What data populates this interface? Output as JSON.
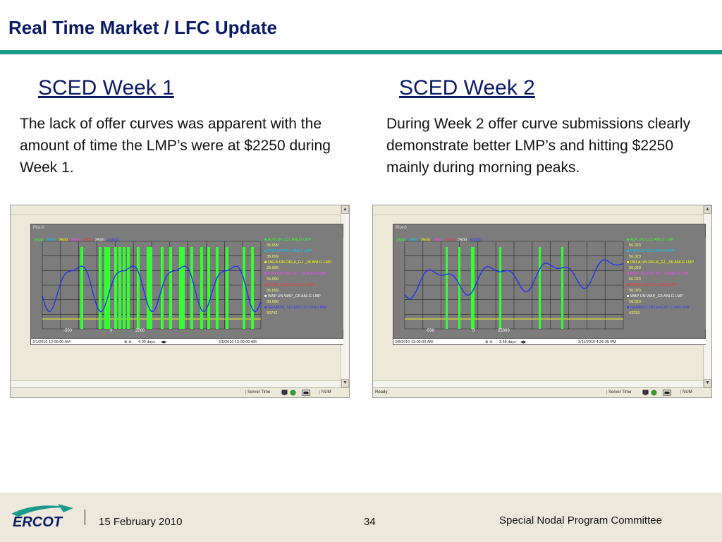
{
  "slide": {
    "title": "Real Time Market / LFC Update",
    "colors": {
      "title": "#0a1a66",
      "rule": "#1a9a8a",
      "footer_bg": "#ece9dc"
    }
  },
  "week1": {
    "heading": "SCED Week 1",
    "text": "The lack of offer curves was apparent with the amount of time the LMP’s were at $2250 during Week 1.",
    "window": {
      "plot_label": "Plot-0",
      "header_values": [
        "2500",
        "2500",
        "2500",
        "2500",
        "2500",
        "2500",
        "43000"
      ],
      "legend": [
        {
          "label": "ALR UN CC1 ANLG LMP",
          "value": "35.099",
          "color": "#33ff33"
        },
        {
          "label": "PSO UN CC1 ANLG LMP",
          "value": "35.099",
          "color": "#00ccff"
        },
        {
          "label": "OKLA UN OKLA_G1 _05 ANLG LMP",
          "value": "35.099",
          "color": "#ffff00"
        },
        {
          "label": "ERF UN STP_G1 _06 ANLG LMP",
          "value": "35.099",
          "color": "#ff44ff"
        },
        {
          "label": "DUKE UN CC1 ANLG LMP",
          "value": "35.099",
          "color": "#ff3333"
        },
        {
          "label": "WAP UN WAP_G5 ANLG LMP",
          "value": "35.099",
          "color": "#ffffff"
        },
        {
          "label": "GENMISC ND ERCOT LOAD MW",
          "value": "30742",
          "color": "#3333ff"
        }
      ],
      "axis_start": "2/1/2010 12:00:00 AM",
      "axis_span": "4.00 days",
      "axis_end": "2/5/2010 12:00:00 AM",
      "bottom_values": [
        "-500",
        "0",
        "2000"
      ],
      "status_server": "Server Time",
      "status_num": "NUM"
    }
  },
  "week2": {
    "heading": "SCED Week 2",
    "text": "During Week 2 offer curve submissions clearly demonstrate better LMP’s and hitting $2250 mainly during morning peaks.",
    "window": {
      "plot_label": "Plot-0",
      "header_values": [
        "2500",
        "2500",
        "2500",
        "2500",
        "2500",
        "2500",
        "50000"
      ],
      "legend": [
        {
          "label": "ALR UN CC1 ANLG LMP",
          "value": "56.023",
          "color": "#33ff33"
        },
        {
          "label": "PSO UN CC1 ANLG LMP",
          "value": "56.023",
          "color": "#00ccff"
        },
        {
          "label": "OKLA UN OKLA_G1 _05 ANLG LMP",
          "value": "56.023",
          "color": "#ffff00"
        },
        {
          "label": "ERF UN STP_G1 _06 ANLG LMP",
          "value": "56.023",
          "color": "#ff44ff"
        },
        {
          "label": "DUKE UN CC1 ANLG LMP",
          "value": "56.023",
          "color": "#ff3333"
        },
        {
          "label": "WAP UN WAP_G5 ANLG LMP",
          "value": "56.023",
          "color": "#ffffff"
        },
        {
          "label": "GENMISC ND ERCOT LOAD MW",
          "value": "43293",
          "color": "#3333ff"
        }
      ],
      "axis_start": "2/8/2010 12:00:00 AM",
      "axis_span": "3.69 days",
      "axis_end": "2/11/2010 4:26:35 PM",
      "bottom_values": [
        "-500",
        "0",
        "25000"
      ],
      "status_ready": "Ready",
      "status_server": "Server Time",
      "status_num": "NUM"
    }
  },
  "footer": {
    "logo_text": "ERCOT",
    "date": "15 February 2010",
    "page": "34",
    "committee": "Special Nodal Program Committee"
  }
}
